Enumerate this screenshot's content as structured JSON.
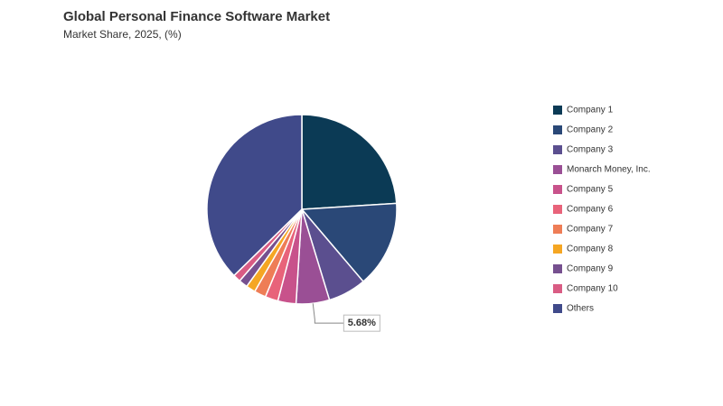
{
  "chart_data": {
    "type": "pie",
    "title": "Global Personal Finance Software Market",
    "subtitle": "Market Share, 2025, (%)",
    "categories": [
      "Company 1",
      "Company 2",
      "Company 3",
      "Monarch Money, Inc.",
      "Company 5",
      "Company 6",
      "Company 7",
      "Company 8",
      "Company 9",
      "Company 10",
      "Others"
    ],
    "values": [
      24,
      14.8,
      6.5,
      5.68,
      3.1,
      2.2,
      2,
      1.6,
      1.5,
      1.3,
      37.32
    ],
    "value_labels": [
      null,
      null,
      null,
      "5.68%",
      null,
      null,
      null,
      null,
      null,
      null,
      null
    ],
    "colors": [
      "#0b3a55",
      "#2a4877",
      "#5b4f8f",
      "#9a4f95",
      "#c8528b",
      "#e8637a",
      "#ee7d56",
      "#f5a623",
      "#76508f",
      "#d95c84",
      "#404a8a"
    ],
    "legend": "right"
  }
}
